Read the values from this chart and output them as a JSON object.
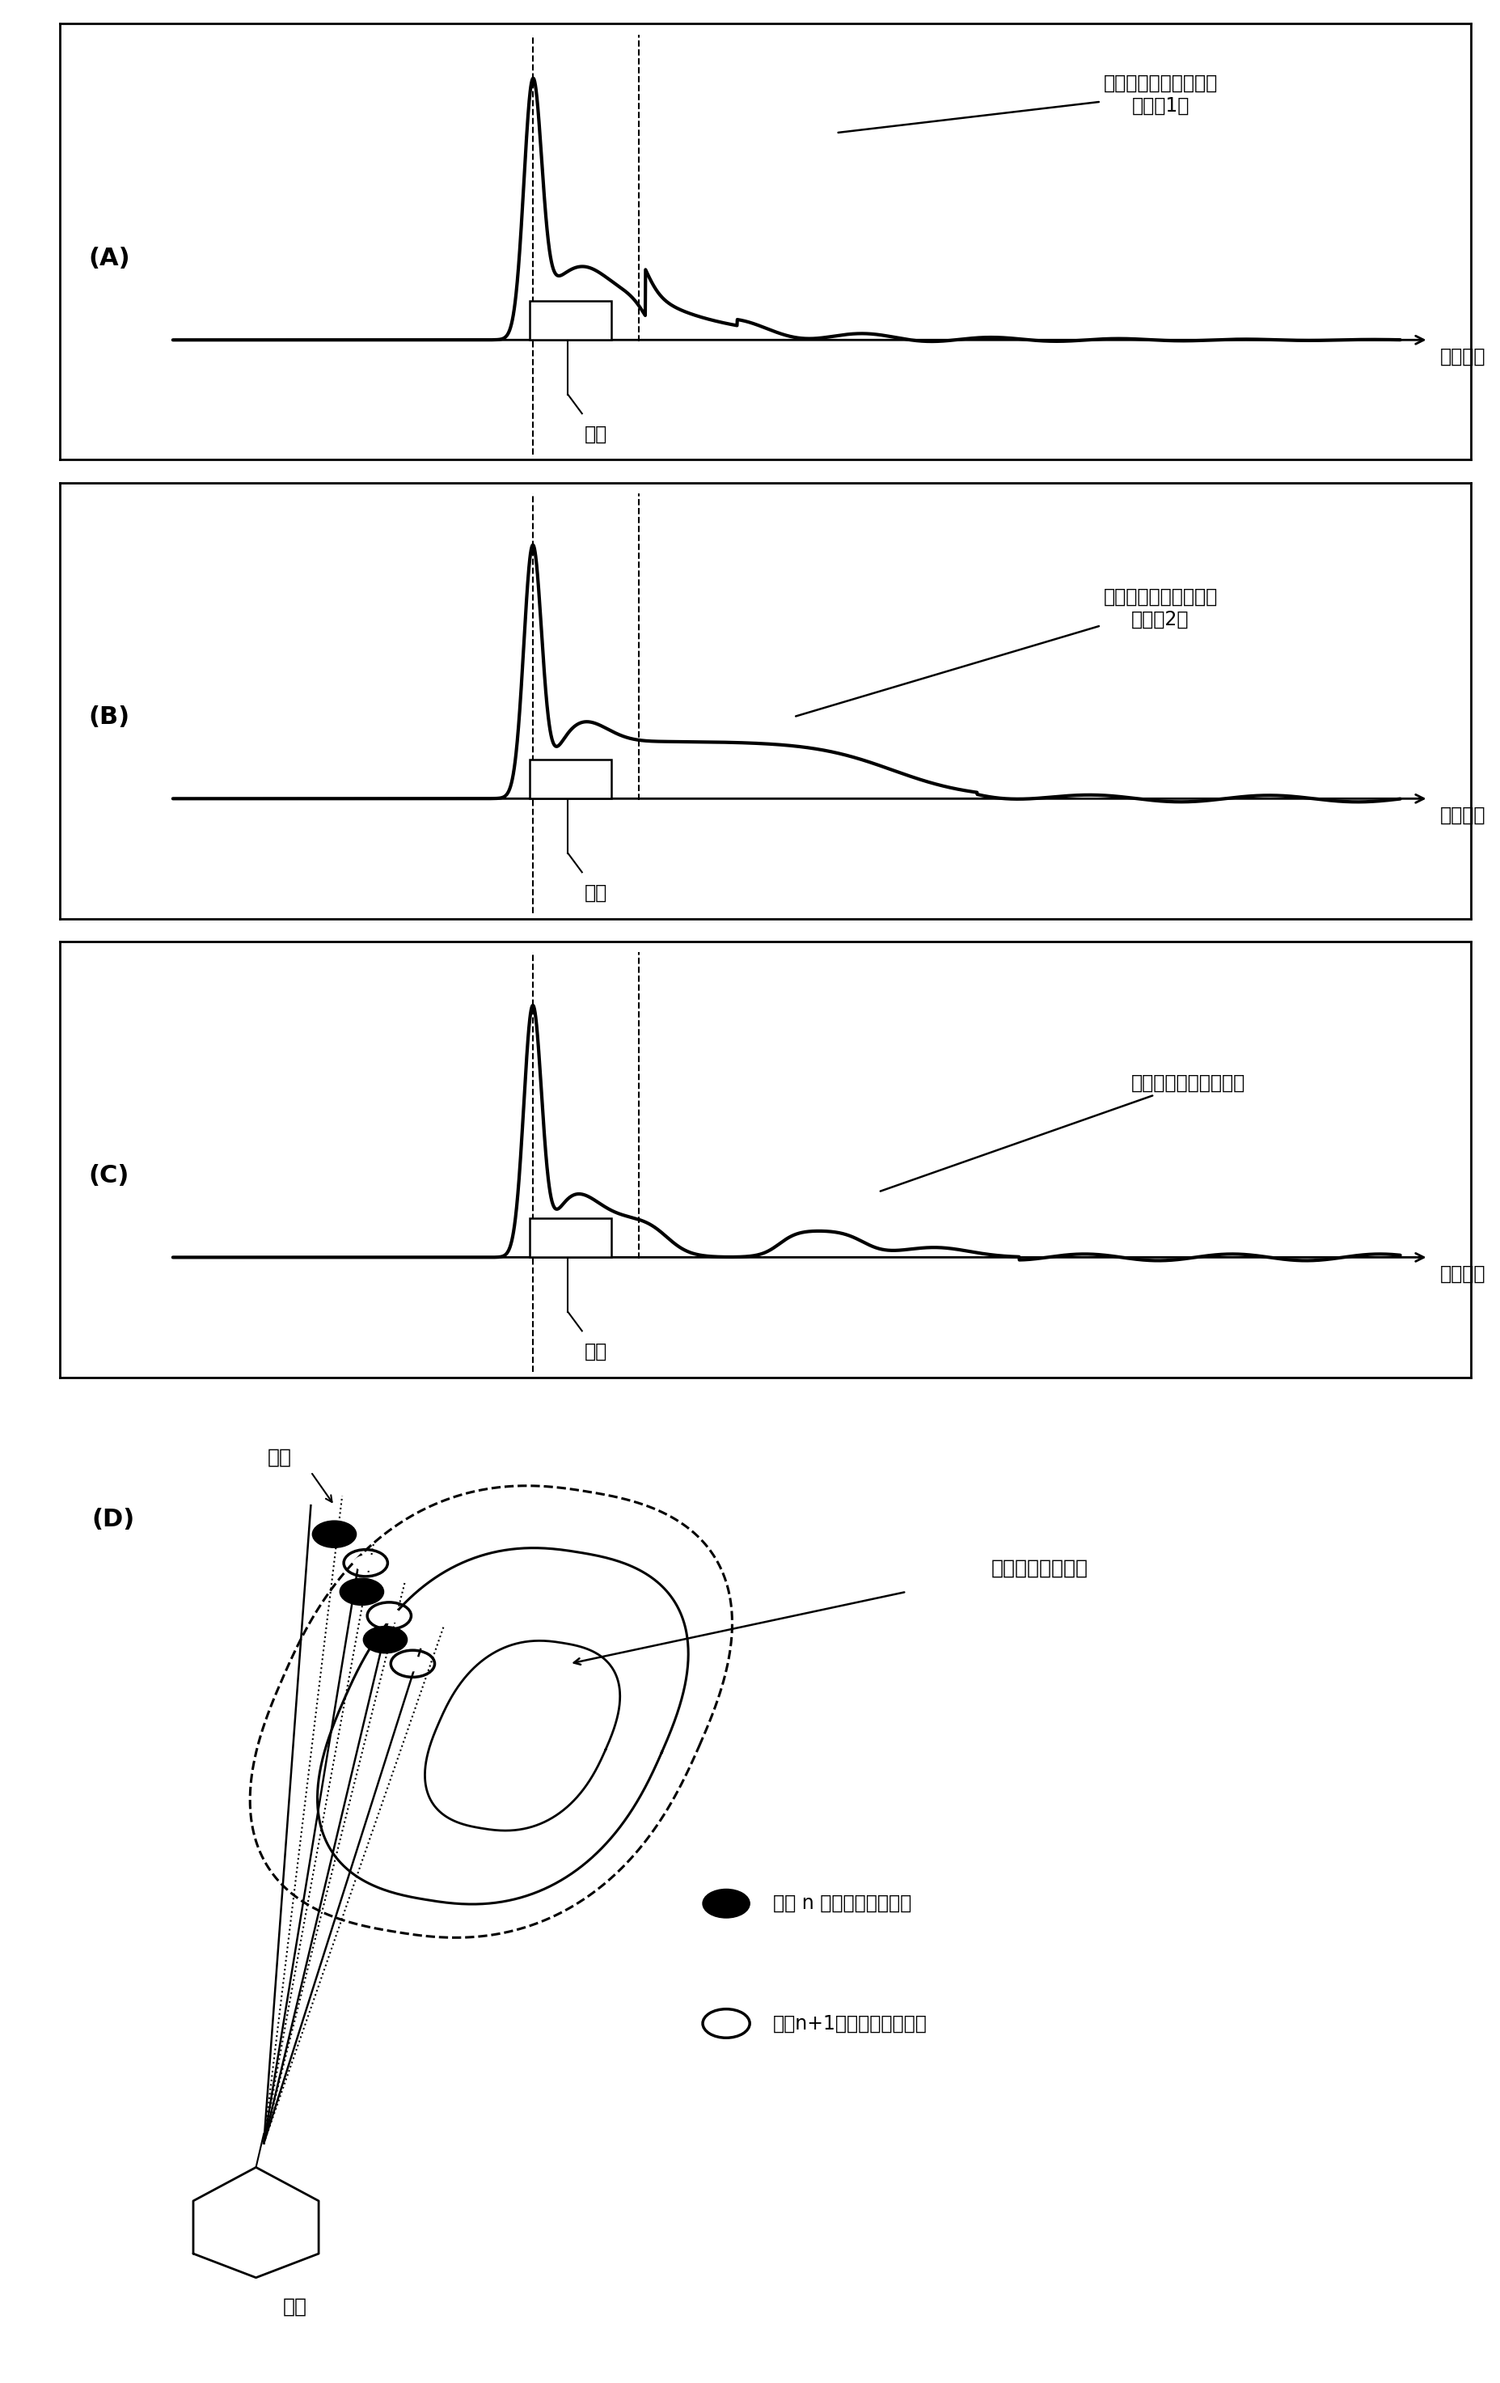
{
  "panel_A_label": "(A)",
  "panel_B_label": "(B)",
  "panel_C_label": "(C)",
  "panel_D_label": "(D)",
  "distance_dir": "距离方向",
  "object_label": "物标",
  "ship_label": "自船",
  "label_A_line1": "边缘强调后的接收回波",
  "label_A_line2": "（条件1）",
  "label_B_line1": "边缘强调后的接收回波",
  "label_B_line2": "（条件2）",
  "label_C": "相关处理后的接收回波",
  "label_D_dot": "：在 n 次扫描强调的边缘",
  "label_D_circle": "：在n+1次扫描强调的边缘",
  "label_D_image": "被显示的回波图像",
  "background_color": "#ffffff"
}
